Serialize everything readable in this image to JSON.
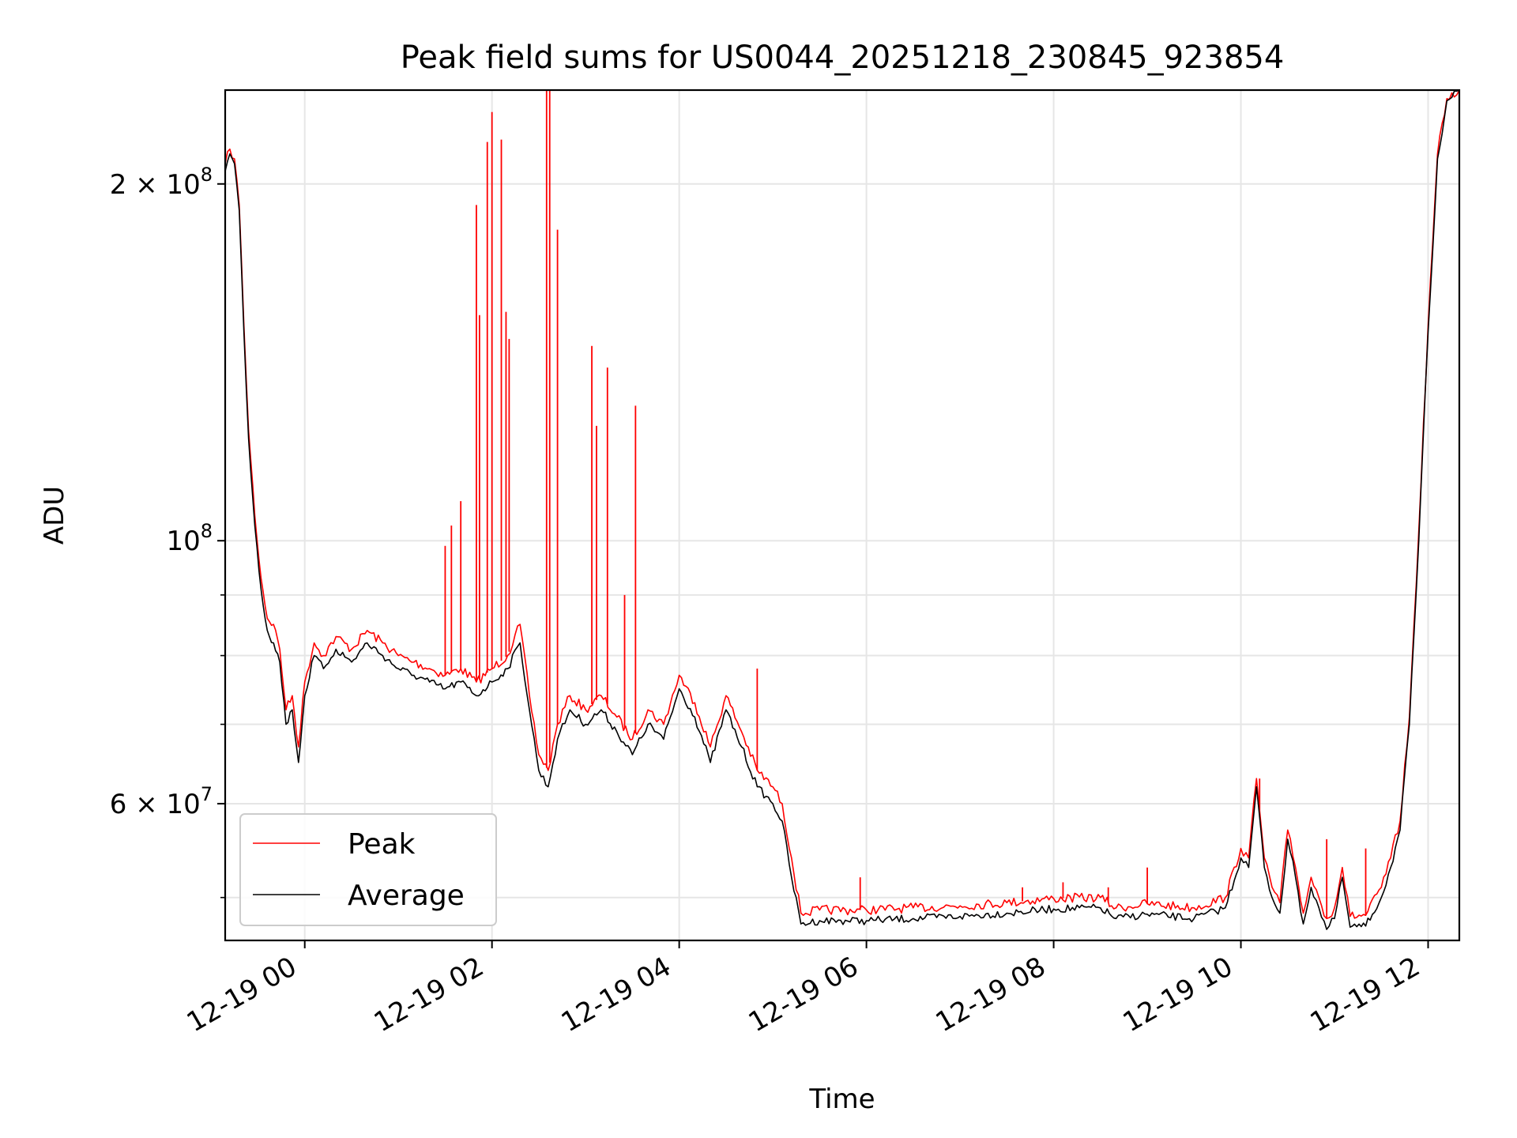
{
  "chart_data": {
    "type": "line",
    "title": "Peak field sums for US0044_20251218_230845_923854",
    "xlabel": "Time",
    "ylabel": "ADU",
    "xlim": [
      "2025-12-18 23:09",
      "2025-12-19 12:20"
    ],
    "ylim": [
      46000000,
      240000000
    ],
    "yscale": "log",
    "grid": true,
    "legend_position": "lower-left",
    "x_ticks": [
      {
        "value": "2025-12-19 00:00",
        "label": "12-19 00"
      },
      {
        "value": "2025-12-19 02:00",
        "label": "12-19 02"
      },
      {
        "value": "2025-12-19 04:00",
        "label": "12-19 04"
      },
      {
        "value": "2025-12-19 06:00",
        "label": "12-19 06"
      },
      {
        "value": "2025-12-19 08:00",
        "label": "12-19 08"
      },
      {
        "value": "2025-12-19 10:00",
        "label": "12-19 10"
      },
      {
        "value": "2025-12-19 12:00",
        "label": "12-19 12"
      }
    ],
    "y_ticks": [
      {
        "value": 60000000,
        "base": "6 × 10",
        "exp": "7"
      },
      {
        "value": 100000000,
        "base": "10",
        "exp": "8"
      },
      {
        "value": 200000000,
        "base": "2 × 10",
        "exp": "8"
      }
    ],
    "y_minor_grid": [
      50000000,
      70000000,
      80000000,
      90000000
    ],
    "series": [
      {
        "name": "Average",
        "color": "#000000",
        "x": [
          "2025-12-18 23:09",
          "2025-12-18 23:12",
          "2025-12-18 23:15",
          "2025-12-18 23:18",
          "2025-12-18 23:21",
          "2025-12-18 23:24",
          "2025-12-18 23:28",
          "2025-12-18 23:32",
          "2025-12-18 23:36",
          "2025-12-18 23:40",
          "2025-12-18 23:44",
          "2025-12-18 23:48",
          "2025-12-18 23:52",
          "2025-12-18 23:56",
          "2025-12-19 00:00",
          "2025-12-19 00:06",
          "2025-12-19 00:12",
          "2025-12-19 00:20",
          "2025-12-19 00:30",
          "2025-12-19 00:40",
          "2025-12-19 00:50",
          "2025-12-19 01:00",
          "2025-12-19 01:10",
          "2025-12-19 01:20",
          "2025-12-19 01:30",
          "2025-12-19 01:40",
          "2025-12-19 01:50",
          "2025-12-19 02:00",
          "2025-12-19 02:10",
          "2025-12-19 02:18",
          "2025-12-19 02:24",
          "2025-12-19 02:30",
          "2025-12-19 02:36",
          "2025-12-19 02:42",
          "2025-12-19 02:50",
          "2025-12-19 03:00",
          "2025-12-19 03:10",
          "2025-12-19 03:20",
          "2025-12-19 03:30",
          "2025-12-19 03:40",
          "2025-12-19 03:50",
          "2025-12-19 04:00",
          "2025-12-19 04:10",
          "2025-12-19 04:20",
          "2025-12-19 04:30",
          "2025-12-19 04:40",
          "2025-12-19 04:50",
          "2025-12-19 05:00",
          "2025-12-19 05:06",
          "2025-12-19 05:12",
          "2025-12-19 05:18",
          "2025-12-19 05:30",
          "2025-12-19 06:00",
          "2025-12-19 06:30",
          "2025-12-19 07:00",
          "2025-12-19 07:30",
          "2025-12-19 08:00",
          "2025-12-19 08:30",
          "2025-12-19 08:40",
          "2025-12-19 09:00",
          "2025-12-19 09:30",
          "2025-12-19 09:50",
          "2025-12-19 10:00",
          "2025-12-19 10:05",
          "2025-12-19 10:10",
          "2025-12-19 10:15",
          "2025-12-19 10:20",
          "2025-12-19 10:25",
          "2025-12-19 10:30",
          "2025-12-19 10:35",
          "2025-12-19 10:40",
          "2025-12-19 10:45",
          "2025-12-19 10:50",
          "2025-12-19 10:55",
          "2025-12-19 11:00",
          "2025-12-19 11:05",
          "2025-12-19 11:10",
          "2025-12-19 11:20",
          "2025-12-19 11:30",
          "2025-12-19 11:36",
          "2025-12-19 11:42",
          "2025-12-19 11:48",
          "2025-12-19 11:54",
          "2025-12-19 12:00",
          "2025-12-19 12:06",
          "2025-12-19 12:12",
          "2025-12-19 12:20"
        ],
        "y": [
          205000000,
          212000000,
          208000000,
          190000000,
          150000000,
          122000000,
          103000000,
          91000000,
          84000000,
          82000000,
          79000000,
          70000000,
          72000000,
          65000000,
          74000000,
          80000000,
          78000000,
          81000000,
          79000000,
          82000000,
          80000000,
          78000000,
          77000000,
          76000000,
          75000000,
          76000000,
          74000000,
          76000000,
          78000000,
          82000000,
          72000000,
          64000000,
          62000000,
          68000000,
          72000000,
          70000000,
          72000000,
          69000000,
          66000000,
          70000000,
          68000000,
          75000000,
          71000000,
          65000000,
          72000000,
          67000000,
          62000000,
          60000000,
          58000000,
          52000000,
          47500000,
          47800000,
          47800000,
          48000000,
          48200000,
          48500000,
          48900000,
          49000000,
          48000000,
          48400000,
          48000000,
          49000000,
          54000000,
          53000000,
          62000000,
          53000000,
          50000000,
          48500000,
          56000000,
          52000000,
          47500000,
          51000000,
          49000000,
          47000000,
          48000000,
          52000000,
          47200000,
          47300000,
          50000000,
          53000000,
          57000000,
          70000000,
          100000000,
          150000000,
          210000000,
          235000000,
          240000000
        ]
      },
      {
        "name": "Peak",
        "color": "#ff0000",
        "x": [
          "2025-12-18 23:09",
          "2025-12-18 23:12",
          "2025-12-18 23:15",
          "2025-12-18 23:18",
          "2025-12-18 23:21",
          "2025-12-18 23:24",
          "2025-12-18 23:28",
          "2025-12-18 23:32",
          "2025-12-18 23:36",
          "2025-12-18 23:40",
          "2025-12-18 23:44",
          "2025-12-18 23:48",
          "2025-12-18 23:52",
          "2025-12-18 23:56",
          "2025-12-19 00:00",
          "2025-12-19 00:06",
          "2025-12-19 00:12",
          "2025-12-19 00:20",
          "2025-12-19 00:30",
          "2025-12-19 00:40",
          "2025-12-19 00:50",
          "2025-12-19 01:00",
          "2025-12-19 01:10",
          "2025-12-19 01:20",
          "2025-12-19 01:30",
          "2025-12-19 01:40",
          "2025-12-19 01:50",
          "2025-12-19 02:00",
          "2025-12-19 02:10",
          "2025-12-19 02:18",
          "2025-12-19 02:24",
          "2025-12-19 02:30",
          "2025-12-19 02:36",
          "2025-12-19 02:42",
          "2025-12-19 02:50",
          "2025-12-19 03:00",
          "2025-12-19 03:10",
          "2025-12-19 03:20",
          "2025-12-19 03:30",
          "2025-12-19 03:40",
          "2025-12-19 03:50",
          "2025-12-19 04:00",
          "2025-12-19 04:10",
          "2025-12-19 04:20",
          "2025-12-19 04:30",
          "2025-12-19 04:40",
          "2025-12-19 04:50",
          "2025-12-19 05:00",
          "2025-12-19 05:06",
          "2025-12-19 05:12",
          "2025-12-19 05:18",
          "2025-12-19 05:30",
          "2025-12-19 06:00",
          "2025-12-19 06:30",
          "2025-12-19 07:00",
          "2025-12-19 07:30",
          "2025-12-19 08:00",
          "2025-12-19 08:30",
          "2025-12-19 08:40",
          "2025-12-19 09:00",
          "2025-12-19 09:30",
          "2025-12-19 09:50",
          "2025-12-19 10:00",
          "2025-12-19 10:05",
          "2025-12-19 10:10",
          "2025-12-19 10:15",
          "2025-12-19 10:20",
          "2025-12-19 10:25",
          "2025-12-19 10:30",
          "2025-12-19 10:35",
          "2025-12-19 10:40",
          "2025-12-19 10:45",
          "2025-12-19 10:50",
          "2025-12-19 10:55",
          "2025-12-19 11:00",
          "2025-12-19 11:05",
          "2025-12-19 11:10",
          "2025-12-19 11:20",
          "2025-12-19 11:30",
          "2025-12-19 11:36",
          "2025-12-19 11:42",
          "2025-12-19 11:48",
          "2025-12-19 11:54",
          "2025-12-19 12:00",
          "2025-12-19 12:06",
          "2025-12-19 12:12",
          "2025-12-19 12:20"
        ],
        "y": [
          208000000,
          214000000,
          210000000,
          192000000,
          152000000,
          124000000,
          105000000,
          93000000,
          86000000,
          85000000,
          81000000,
          72000000,
          74000000,
          67000000,
          76000000,
          82000000,
          80000000,
          83000000,
          81000000,
          84000000,
          82000000,
          80000000,
          79000000,
          78000000,
          77000000,
          78000000,
          76000000,
          78000000,
          80000000,
          85000000,
          74000000,
          66000000,
          64000000,
          70000000,
          74000000,
          72000000,
          74000000,
          71000000,
          68000000,
          72000000,
          70000000,
          77000000,
          73000000,
          67000000,
          74000000,
          69000000,
          64000000,
          62000000,
          60000000,
          54000000,
          48500000,
          48800000,
          48800000,
          49000000,
          49200000,
          49500000,
          49900000,
          50000000,
          49000000,
          49400000,
          49000000,
          50000000,
          55000000,
          54000000,
          63000000,
          54000000,
          51000000,
          49500000,
          57000000,
          53000000,
          48500000,
          52000000,
          50000000,
          48000000,
          49000000,
          53000000,
          48200000,
          48300000,
          51000000,
          54000000,
          58000000,
          71000000,
          102000000,
          152000000,
          212000000,
          236000000,
          240000000
        ],
        "spikes": [
          {
            "x": "2025-12-19 01:30",
            "y": 99000000
          },
          {
            "x": "2025-12-19 01:34",
            "y": 103000000
          },
          {
            "x": "2025-12-19 01:40",
            "y": 108000000
          },
          {
            "x": "2025-12-19 01:50",
            "y": 192000000
          },
          {
            "x": "2025-12-19 01:52",
            "y": 155000000
          },
          {
            "x": "2025-12-19 01:57",
            "y": 217000000
          },
          {
            "x": "2025-12-19 02:00",
            "y": 230000000
          },
          {
            "x": "2025-12-19 02:06",
            "y": 218000000
          },
          {
            "x": "2025-12-19 02:09",
            "y": 156000000
          },
          {
            "x": "2025-12-19 02:11",
            "y": 148000000
          },
          {
            "x": "2025-12-19 02:35",
            "y": 240000000
          },
          {
            "x": "2025-12-19 02:37",
            "y": 240000000
          },
          {
            "x": "2025-12-19 02:42",
            "y": 183000000
          },
          {
            "x": "2025-12-19 03:04",
            "y": 146000000
          },
          {
            "x": "2025-12-19 03:07",
            "y": 125000000
          },
          {
            "x": "2025-12-19 03:14",
            "y": 140000000
          },
          {
            "x": "2025-12-19 03:25",
            "y": 90000000
          },
          {
            "x": "2025-12-19 03:32",
            "y": 130000000
          },
          {
            "x": "2025-12-19 04:50",
            "y": 78000000
          },
          {
            "x": "2025-12-19 05:56",
            "y": 52000000
          },
          {
            "x": "2025-12-19 07:40",
            "y": 51000000
          },
          {
            "x": "2025-12-19 08:06",
            "y": 51500000
          },
          {
            "x": "2025-12-19 08:35",
            "y": 51000000
          },
          {
            "x": "2025-12-19 09:00",
            "y": 53000000
          },
          {
            "x": "2025-12-19 10:12",
            "y": 63000000
          },
          {
            "x": "2025-12-19 10:55",
            "y": 56000000
          },
          {
            "x": "2025-12-19 11:20",
            "y": 55000000
          }
        ]
      }
    ],
    "legend": [
      {
        "name": "Peak",
        "color": "#ff0000"
      },
      {
        "name": "Average",
        "color": "#000000"
      }
    ]
  }
}
